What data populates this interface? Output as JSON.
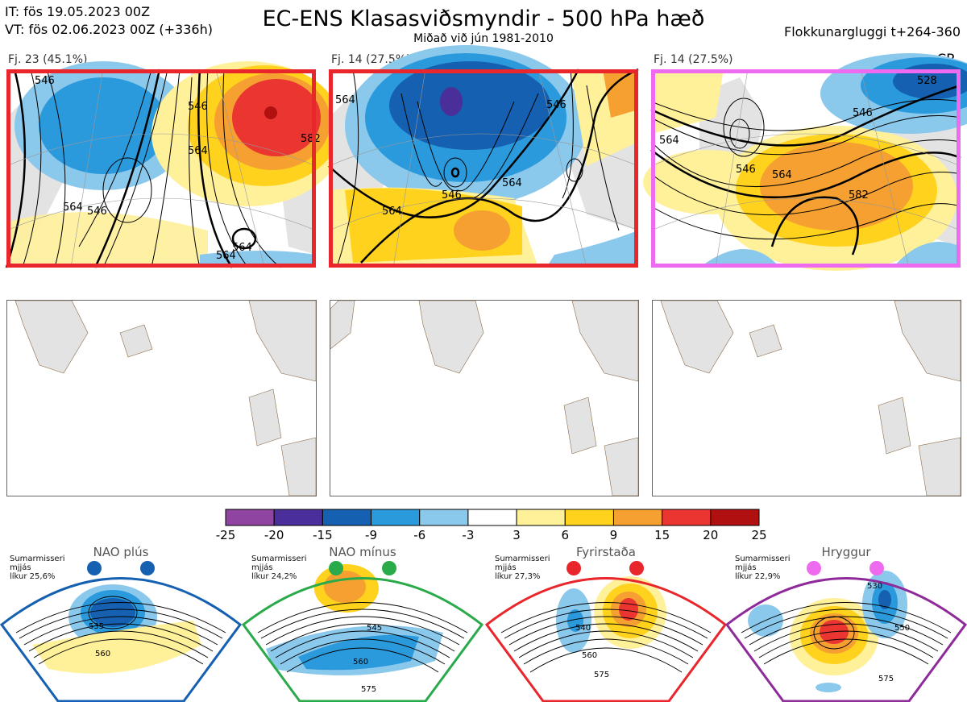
{
  "header": {
    "it_line": "IT: fös 19.05.2023 00Z",
    "vt_line": "VT: fös 02.06.2023 00Z  (+336h)",
    "title": "EC-ENS Klasasviðsmyndir - 500 hPa hæð",
    "subtitle": "Miðað við jún 1981-2010",
    "window": "Flokkunargluggi t+264-360",
    "cr": "CR"
  },
  "clusters": [
    {
      "label": "Fj. 23 (45.1%)",
      "frame_color": "#e8262b",
      "contour_labels": [
        "546",
        "564",
        "564",
        "546",
        "564",
        "546",
        "582",
        "564"
      ]
    },
    {
      "label": "Fj. 14 (27.5%)",
      "frame_color": "#e8262b",
      "contour_labels": [
        "564",
        "546",
        "546",
        "564",
        "564"
      ]
    },
    {
      "label": "Fj. 14 (27.5%)",
      "frame_color": "#ee6aee",
      "contour_labels": [
        "528",
        "546",
        "564",
        "546",
        "564",
        "582"
      ]
    }
  ],
  "colorbar": {
    "ticks": [
      "-25",
      "-20",
      "-15",
      "-9",
      "-6",
      "-3",
      "3",
      "6",
      "9",
      "15",
      "20",
      "25"
    ],
    "colors": [
      "#8e44a0",
      "#4a2f9a",
      "#1560b0",
      "#2a9adc",
      "#8ac8ec",
      "#ffffff",
      "#fff09a",
      "#ffd21e",
      "#f5a030",
      "#ea3530",
      "#b01010"
    ]
  },
  "regimes": [
    {
      "name": "NAO plús",
      "info": [
        "Sumarmisseri",
        "mjjás",
        "líkur 25,6%"
      ],
      "color": "#1560b0",
      "labels": [
        "535",
        "560"
      ]
    },
    {
      "name": "NAO mínus",
      "info": [
        "Sumarmisseri",
        "mjjás",
        "líkur 24,2%"
      ],
      "color": "#2aaa4a",
      "labels": [
        "545",
        "560",
        "575"
      ]
    },
    {
      "name": "Fyrirstaða",
      "info": [
        "Sumarmisseri",
        "mjjás",
        "líkur 27,3%"
      ],
      "color": "#e8262b",
      "labels": [
        "540",
        "560",
        "575"
      ]
    },
    {
      "name": "Hryggur",
      "info": [
        "Sumarmisseri",
        "mjjás",
        "líkur 22,9%"
      ],
      "color": "#ee6aee",
      "labels": [
        "530",
        "550",
        "575"
      ]
    }
  ],
  "chart_data": {
    "type": "heatmap",
    "title": "EC-ENS Klasasviðsmyndir - 500 hPa hæð",
    "variable": "500 hPa height anomaly",
    "colorbar_bounds": [
      -25,
      -20,
      -15,
      -9,
      -6,
      -3,
      3,
      6,
      9,
      15,
      20,
      25
    ],
    "clusters": [
      {
        "label": "Fj. 23 (45.1%)",
        "members": 23,
        "percent": 45.1
      },
      {
        "label": "Fj. 14 (27.5%)",
        "members": 14,
        "percent": 27.5
      },
      {
        "label": "Fj. 14 (27.5%)",
        "members": 14,
        "percent": 27.5
      }
    ],
    "regimes": [
      {
        "name": "NAO plús",
        "probability": 25.6
      },
      {
        "name": "NAO mínus",
        "probability": 24.2
      },
      {
        "name": "Fyrirstaða",
        "probability": 27.3
      },
      {
        "name": "Hryggur",
        "probability": 22.9
      }
    ]
  }
}
